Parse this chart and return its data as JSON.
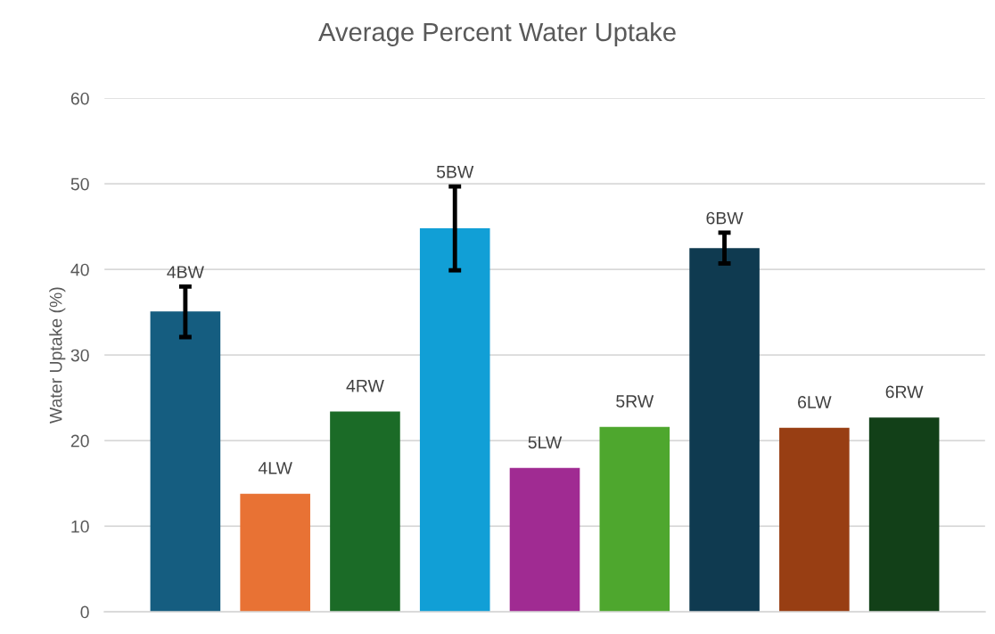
{
  "chart_data": {
    "type": "bar",
    "title": "Average Percent Water Uptake",
    "ylabel": "Water Uptake (%)",
    "categories": [
      "4BW",
      "4LW",
      "4RW",
      "5BW",
      "5LW",
      "5RW",
      "6BW",
      "6LW",
      "6RW"
    ],
    "values": [
      35.1,
      13.8,
      23.4,
      44.8,
      16.8,
      21.6,
      42.5,
      21.5,
      22.7
    ],
    "colors": [
      "#155d80",
      "#e87234",
      "#1b6b27",
      "#119fd6",
      "#a02b92",
      "#4ea72e",
      "#0f3a50",
      "#983e13",
      "#124018"
    ],
    "errors": [
      [
        32.1,
        38.0
      ],
      null,
      null,
      [
        39.9,
        49.7
      ],
      null,
      null,
      [
        40.7,
        44.3
      ],
      null,
      null
    ],
    "ylim": [
      0,
      60
    ],
    "yticks": [
      0,
      10,
      20,
      30,
      40,
      50,
      60
    ],
    "grid": "y",
    "legend": false
  }
}
